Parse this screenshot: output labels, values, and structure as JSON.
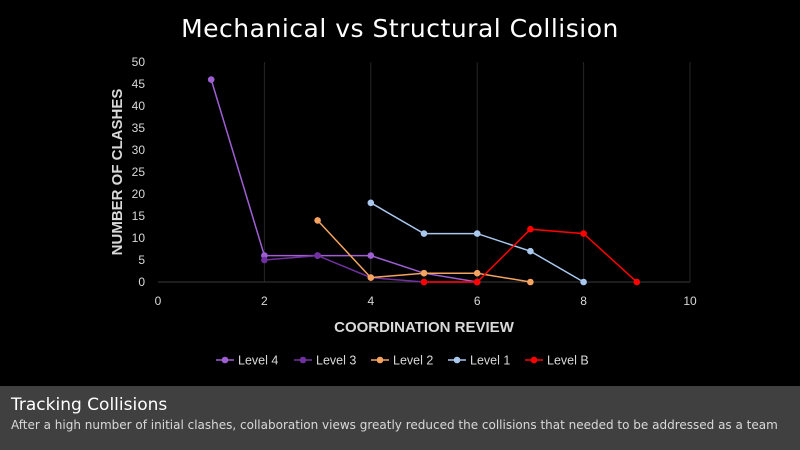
{
  "chart_data": {
    "type": "line",
    "title": "Mechanical vs Structural Collision",
    "xlabel": "COORDINATION REVIEW",
    "ylabel": "NUMBER OF CLASHES",
    "xlim": [
      0,
      10
    ],
    "ylim": [
      0,
      50
    ],
    "xticks": [
      0,
      2,
      4,
      6,
      8,
      10
    ],
    "yticks": [
      0,
      5,
      10,
      15,
      20,
      25,
      30,
      35,
      40,
      45,
      50
    ],
    "grid": "vertical",
    "legend": "bottom",
    "series": [
      {
        "name": "Level 4",
        "color": "#9e5fd1",
        "x": [
          1,
          2,
          3,
          4,
          5,
          6
        ],
        "y": [
          46,
          6,
          6,
          6,
          2,
          0
        ]
      },
      {
        "name": "Level 3",
        "color": "#7030a0",
        "x": [
          2,
          3,
          4,
          5,
          6
        ],
        "y": [
          5,
          6,
          1,
          0,
          0
        ]
      },
      {
        "name": "Level 2",
        "color": "#f4a460",
        "x": [
          3,
          4,
          5,
          6,
          7
        ],
        "y": [
          14,
          1,
          2,
          2,
          0
        ]
      },
      {
        "name": "Level 1",
        "color": "#aac8ee",
        "x": [
          4,
          5,
          6,
          7,
          8
        ],
        "y": [
          18,
          11,
          11,
          7,
          0
        ]
      },
      {
        "name": "Level B",
        "color": "#ff0000",
        "x": [
          5,
          6,
          7,
          8,
          9
        ],
        "y": [
          0,
          0,
          12,
          11,
          0
        ]
      }
    ]
  },
  "caption": {
    "title": "Tracking Collisions",
    "text": "After a high number of initial clashes, collaboration views greatly reduced the collisions that needed to be addressed as a team"
  }
}
